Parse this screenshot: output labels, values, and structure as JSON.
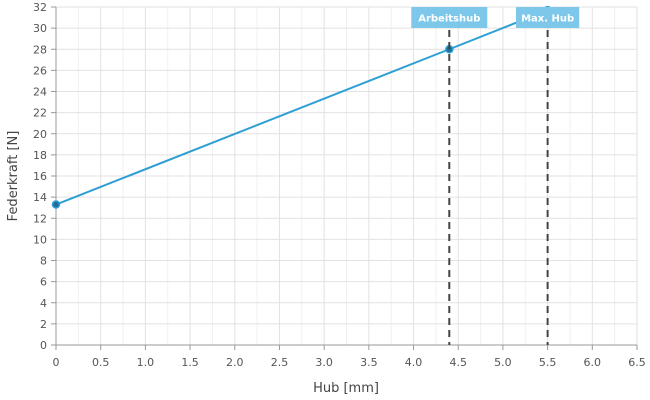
{
  "chart_data": {
    "type": "line",
    "xlabel": "Hub [mm]",
    "ylabel": "Federkraft [N]",
    "xlim": [
      0,
      6.5
    ],
    "ylim": [
      0,
      32
    ],
    "x_ticks": [
      "0",
      "0.5",
      "1.0",
      "1.5",
      "2.0",
      "2.5",
      "3.0",
      "3.5",
      "4.0",
      "4.5",
      "5.0",
      "5.5",
      "6.0",
      "6.5"
    ],
    "y_ticks": [
      "0",
      "2",
      "4",
      "6",
      "8",
      "10",
      "12",
      "14",
      "16",
      "18",
      "20",
      "22",
      "24",
      "26",
      "28",
      "30",
      "32"
    ],
    "grid": true,
    "series": [
      {
        "x": [
          0,
          4.4,
          5.5
        ],
        "y": [
          13.3,
          28.0,
          31.7
        ]
      }
    ],
    "markers": [
      {
        "label": "Arbeitshub",
        "x": 4.4
      },
      {
        "label": "Max. Hub",
        "x": 5.5
      }
    ],
    "colors": {
      "line": "#2e9fd4",
      "point": "#1d6f96",
      "marker_line": "#444444",
      "marker_label_bg": "#7dc8ea",
      "grid": "#e2e2e2",
      "axis": "#999999"
    }
  }
}
